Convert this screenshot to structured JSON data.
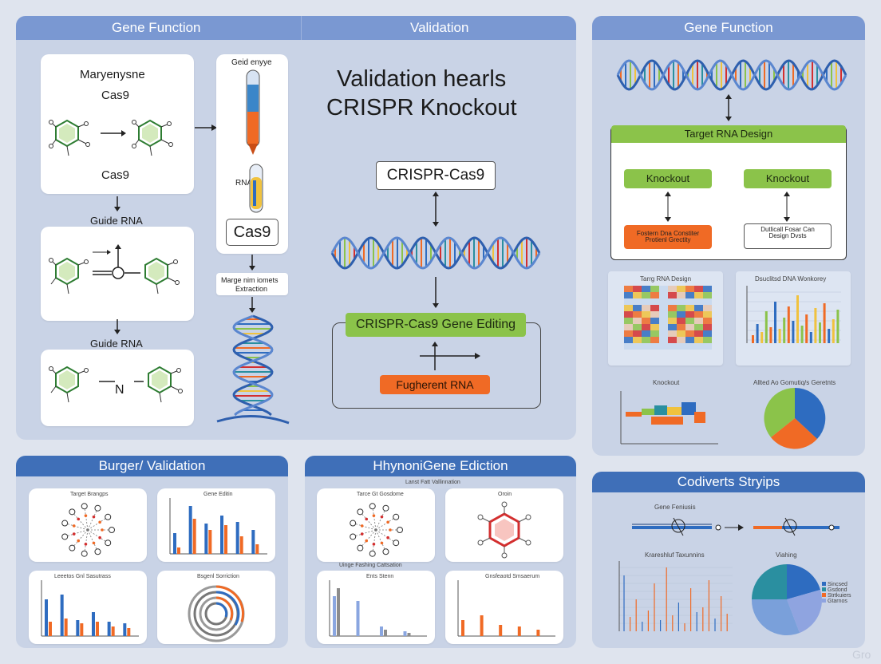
{
  "panel_main": {
    "header_left": "Gene Function",
    "header_right": "Validation",
    "card1_title": "Maryenysne",
    "card1_sub1": "Cas9",
    "card1_sub2": "Cas9",
    "label_guide_rna_1": "Guide RNA",
    "label_guide_rna_2": "Guide RNA",
    "tube_label_top": "Geid enyye",
    "tube_label_mid": "RNA",
    "cas9_box": "Cas9",
    "extraction_label_1": "Marge nim iomets",
    "extraction_label_2": "Extraction",
    "big_title_1": "Validation hearls",
    "big_title_2": "CRISPR Knockout",
    "crispr_box": "CRISPR-Cas9",
    "editing_box": "CRISPR-Cas9 Gene Editing",
    "fugrent_box": "Fugherent RNA",
    "mol_letter": "N"
  },
  "panel_right": {
    "header": "Gene Function",
    "target_box": "Target RNA Design",
    "knockout_1": "Knockout",
    "knockout_2": "Knockout",
    "orange_label": "Fostern Dna Constiter Protienl Grectity",
    "white_label": "Dutlicall Fosar Can Design Dvsts",
    "mini1_title": "Tarrg RNA Design",
    "mini2_title": "Dsuclitsd DNA Wonkorey",
    "mini3_title": "Knockout",
    "mini4_title": "Allted Ao Gomutiq/s Geretnts"
  },
  "panel_bl": {
    "header": "Burger/ Validation",
    "c1_title": "Target Brangps",
    "c2_title": "Gene Editin",
    "c3_title": "Leeetos Gnl Sasutrass",
    "c4_title": "Bsgenl Sorriction"
  },
  "panel_bm": {
    "header": "HhynoniGene Ediction",
    "sub_header": "Lanst Fatt Vallinnation",
    "c1_title": "Tarce Gt Gosdome",
    "c2_title": "Oroin",
    "c3_title": "Uinge Fashing Cattsation",
    "c3_inner": "Ents Stenn",
    "c4_title": "Gnsfeaotd Smsaerum"
  },
  "panel_br": {
    "header": "Codiverts Stryips",
    "gene_label": "Gene Feniusis",
    "chart_title": "Krareshluf Taxunnins",
    "pie_title": "Viahing",
    "legend": [
      "Sincsed",
      "Gsdond",
      "Strtkuiers",
      "Gtarnos"
    ]
  },
  "watermark": "Gro",
  "colors": {
    "header": "#7a98d2",
    "header_dark": "#3f6fb8",
    "green": "#8bc34a",
    "orange": "#f06a25",
    "blue": "#2e6cc0"
  }
}
